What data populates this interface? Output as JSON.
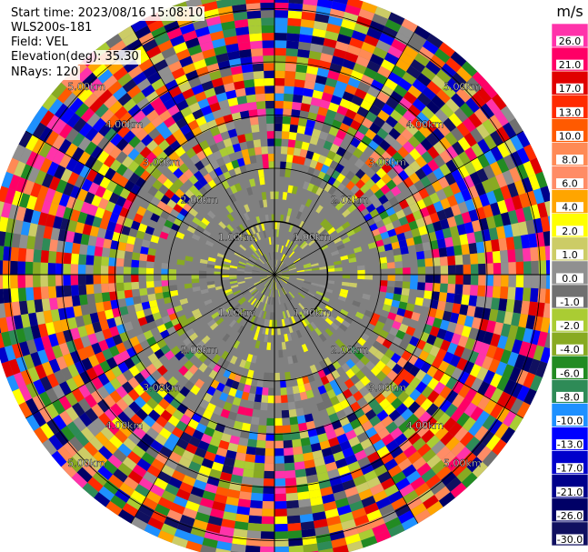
{
  "info": {
    "start_time": "Start time: 2023/08/16 15:08:10",
    "instrument": "WLS200s-181",
    "field": "Field: VEL",
    "elevation": "Elevation(deg): 35.30",
    "nrays": "NRays: 120"
  },
  "chart_data": {
    "type": "heatmap",
    "projection": "polar-ppi",
    "range_rings_km": [
      1.0,
      2.0,
      3.0,
      4.0,
      5.0
    ],
    "ring_labels": [
      "1.00km",
      "2.00km",
      "3.00km",
      "4.00km",
      "5.00km"
    ],
    "max_range_km": 5.4,
    "colorbar": {
      "unit": "m/s",
      "tick_labels": [
        "26.0",
        "21.0",
        "17.0",
        "13.0",
        "10.0",
        "8.0",
        "6.0",
        "4.0",
        "2.0",
        "1.0",
        "0.0",
        "-1.0",
        "-2.0",
        "-4.0",
        "-6.0",
        "-8.0",
        "-10.0",
        "-13.0",
        "-17.0",
        "-21.0",
        "-26.0",
        "-30.0"
      ],
      "colors": [
        "#ff33aa",
        "#ff0066",
        "#e00000",
        "#ff2a00",
        "#ff5a00",
        "#ff8a55",
        "#ff8c66",
        "#ffa500",
        "#ffff00",
        "#cccc66",
        "#909090",
        "#707070",
        "#aacc33",
        "#88aa22",
        "#228b22",
        "#2e8b57",
        "#1e90ff",
        "#0000ff",
        "#0000cc",
        "#00008b",
        "#000066",
        "#101060"
      ]
    },
    "grid": true
  }
}
